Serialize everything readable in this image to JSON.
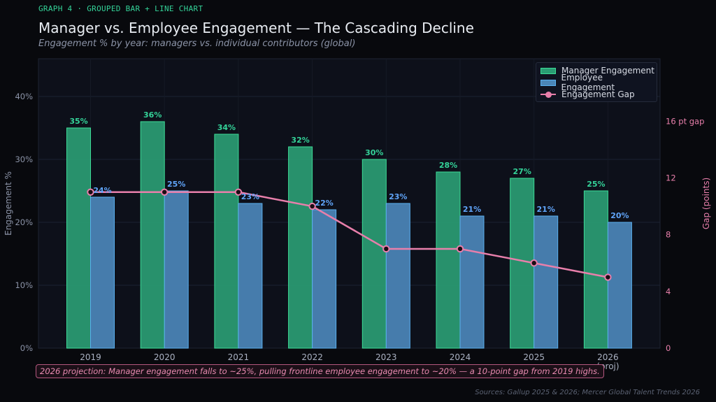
{
  "header": {
    "tag": "GRAPH 4  ·  GROUPED BAR + LINE CHART",
    "title": "Manager vs. Employee Engagement — The Cascading Decline",
    "subtitle": "Engagement % by year: managers vs. individual contributors (global)"
  },
  "annotation": "2026 projection: Manager engagement falls to ~25%, pulling frontline employee engagement to ~20% — a 10-point gap from 2019 highs.",
  "source": "Sources: Gallup 2025 & 2026; Mercer Global Talent Trends 2026",
  "legend": {
    "manager": "Manager Engagement",
    "employee": "Employee Engagement",
    "gap": "Engagement Gap"
  },
  "colors": {
    "manager_fill": "#2a9c73",
    "manager_edge": "#3ddc97",
    "manager_label": "#34d399",
    "employee_fill": "#4b86b8",
    "employee_edge": "#5ab0f0",
    "employee_label": "#60a5fa",
    "gap_line": "#e87fab",
    "background": "#08090d",
    "plot_background": "#0d101a"
  },
  "chart_data": {
    "type": "bar",
    "title": "Manager vs. Employee Engagement — The Cascading Decline",
    "subtitle": "Engagement % by year: managers vs. individual contributors (global)",
    "categories": [
      "2019",
      "2020",
      "2021",
      "2022",
      "2023",
      "2024",
      "2025",
      "2026\n(proj)"
    ],
    "series": [
      {
        "name": "Manager Engagement",
        "type": "bar",
        "axis": "left",
        "values": [
          35,
          36,
          34,
          32,
          30,
          28,
          27,
          25
        ]
      },
      {
        "name": "Employee Engagement",
        "type": "bar",
        "axis": "left",
        "values": [
          24,
          25,
          23,
          22,
          23,
          21,
          21,
          20
        ]
      },
      {
        "name": "Engagement Gap",
        "type": "line",
        "axis": "right",
        "values": [
          11,
          11,
          11,
          10,
          7,
          7,
          6,
          5
        ]
      }
    ],
    "ylabel": "Engagement %",
    "y2label": "Gap (points)",
    "ylim": [
      0,
      46
    ],
    "y2lim": [
      0,
      20.4
    ],
    "yticks": [
      0,
      10,
      20,
      30,
      40
    ],
    "ytick_labels": [
      "0%",
      "10%",
      "20%",
      "30%",
      "40%"
    ],
    "y2ticks": [
      0,
      4,
      8,
      12,
      16
    ],
    "y2tick_labels": [
      "0",
      "4",
      "8",
      "12",
      "16 pt gap"
    ],
    "grid": true,
    "legend_position": "top-right"
  }
}
